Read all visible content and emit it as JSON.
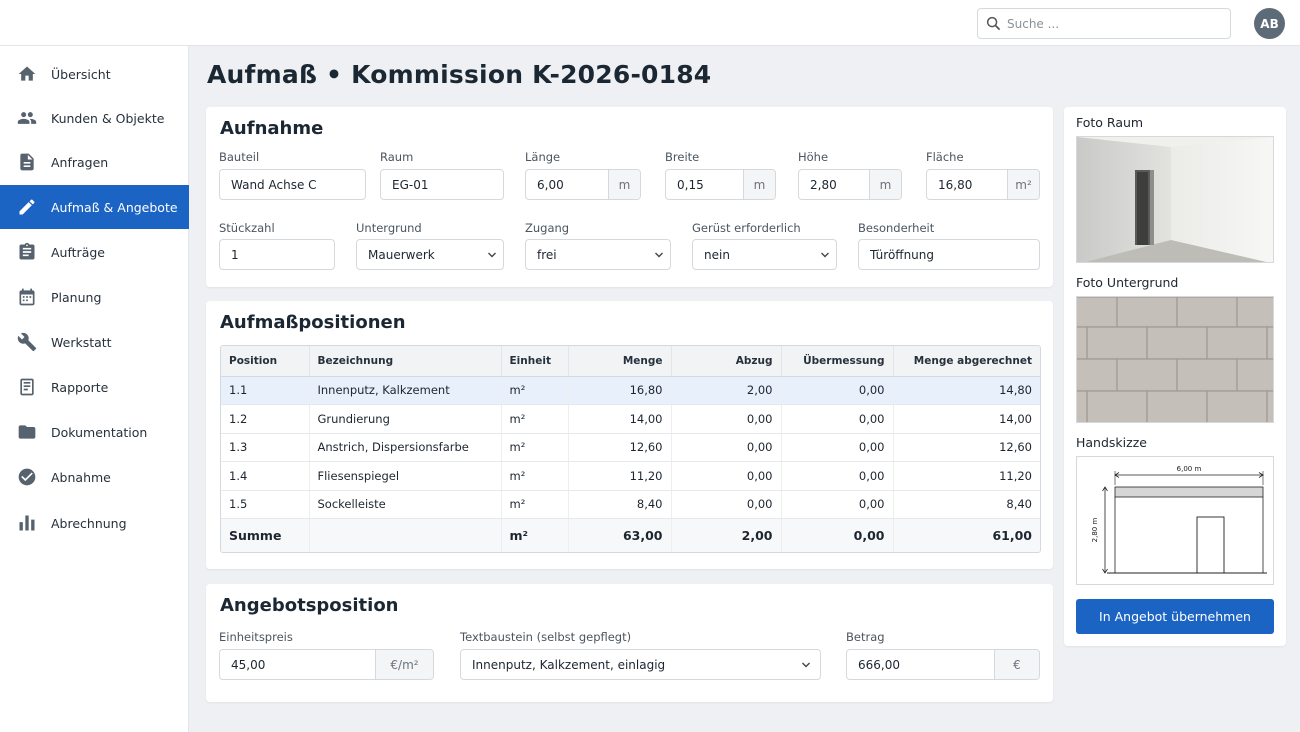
{
  "search": {
    "placeholder": "Suche ..."
  },
  "user": {
    "initials": "AB"
  },
  "sidebar": {
    "items": [
      {
        "label": "Übersicht",
        "icon": "home-icon"
      },
      {
        "label": "Kunden & Objekte",
        "icon": "people-icon"
      },
      {
        "label": "Anfragen",
        "icon": "document-icon"
      },
      {
        "label": "Aufmaß & Angebote",
        "icon": "ruler-pencil-icon",
        "active": true
      },
      {
        "label": "Aufträge",
        "icon": "clipboard-icon"
      },
      {
        "label": "Planung",
        "icon": "calendar-icon"
      },
      {
        "label": "Werkstatt",
        "icon": "wrench-icon"
      },
      {
        "label": "Rapporte",
        "icon": "report-icon"
      },
      {
        "label": "Dokumentation",
        "icon": "folder-icon"
      },
      {
        "label": "Abnahme",
        "icon": "check-circle-icon"
      },
      {
        "label": "Abrechnung",
        "icon": "bar-chart-icon"
      }
    ]
  },
  "page": {
    "title": "Aufmaß • Kommission K-2026-0184"
  },
  "aufnahme": {
    "title": "Aufnahme",
    "bauteil": {
      "label": "Bauteil",
      "value": "Wand Achse C"
    },
    "raum": {
      "label": "Raum",
      "value": "EG-01"
    },
    "laenge": {
      "label": "Länge",
      "value": "6,00",
      "unit": "m"
    },
    "breite": {
      "label": "Breite",
      "value": "0,15",
      "unit": "m"
    },
    "hoehe": {
      "label": "Höhe",
      "value": "2,80",
      "unit": "m"
    },
    "flaeche": {
      "label": "Fläche",
      "value": "16,80",
      "unit": "m²"
    },
    "stueckzahl": {
      "label": "Stückzahl",
      "value": "1"
    },
    "untergrund": {
      "label": "Untergrund",
      "value": "Mauerwerk"
    },
    "zugang": {
      "label": "Zugang",
      "value": "frei"
    },
    "geruest": {
      "label": "Gerüst erforderlich",
      "value": "nein"
    },
    "besonderheit": {
      "label": "Besonderheit",
      "value": "Türöffnung"
    }
  },
  "positionen": {
    "title": "Aufmaßpositionen",
    "headers": [
      "Position",
      "Bezeichnung",
      "Einheit",
      "Menge",
      "Abzug",
      "Übermessung",
      "Menge abgerechnet"
    ],
    "rows": [
      [
        "1.1",
        "Innenputz, Kalkzement",
        "m²",
        "16,80",
        "2,00",
        "0,00",
        "14,80"
      ],
      [
        "1.2",
        "Grundierung",
        "m²",
        "14,00",
        "0,00",
        "0,00",
        "14,00"
      ],
      [
        "1.3",
        "Anstrich, Dispersionsfarbe",
        "m²",
        "12,60",
        "0,00",
        "0,00",
        "12,60"
      ],
      [
        "1.4",
        "Fliesenspiegel",
        "m²",
        "11,20",
        "0,00",
        "0,00",
        "11,20"
      ],
      [
        "1.5",
        "Sockelleiste",
        "m²",
        "8,40",
        "0,00",
        "0,00",
        "8,40"
      ]
    ],
    "sum": [
      "Summe",
      "",
      "m²",
      "63,00",
      "2,00",
      "0,00",
      "61,00"
    ]
  },
  "angebot": {
    "title": "Angebotsposition",
    "einheitspreis": {
      "label": "Einheitspreis",
      "value": "45,00",
      "unit": "€/m²"
    },
    "textbaustein": {
      "label": "Textbaustein (selbst gepflegt)",
      "value": "Innenputz, Kalkzement, einlagig"
    },
    "betrag": {
      "label": "Betrag",
      "value": "666,00",
      "unit": "€"
    }
  },
  "right": {
    "foto_raum": "Foto Raum",
    "foto_untergrund": "Foto Untergrund",
    "handskizze": "Handskizze",
    "sketch_width": "6,00 m",
    "sketch_height": "2,80 m",
    "button": "In Angebot übernehmen"
  },
  "colors": {
    "accent": "#1b64c4",
    "background": "#eef0f3",
    "selected_row": "#e8f0fb"
  }
}
